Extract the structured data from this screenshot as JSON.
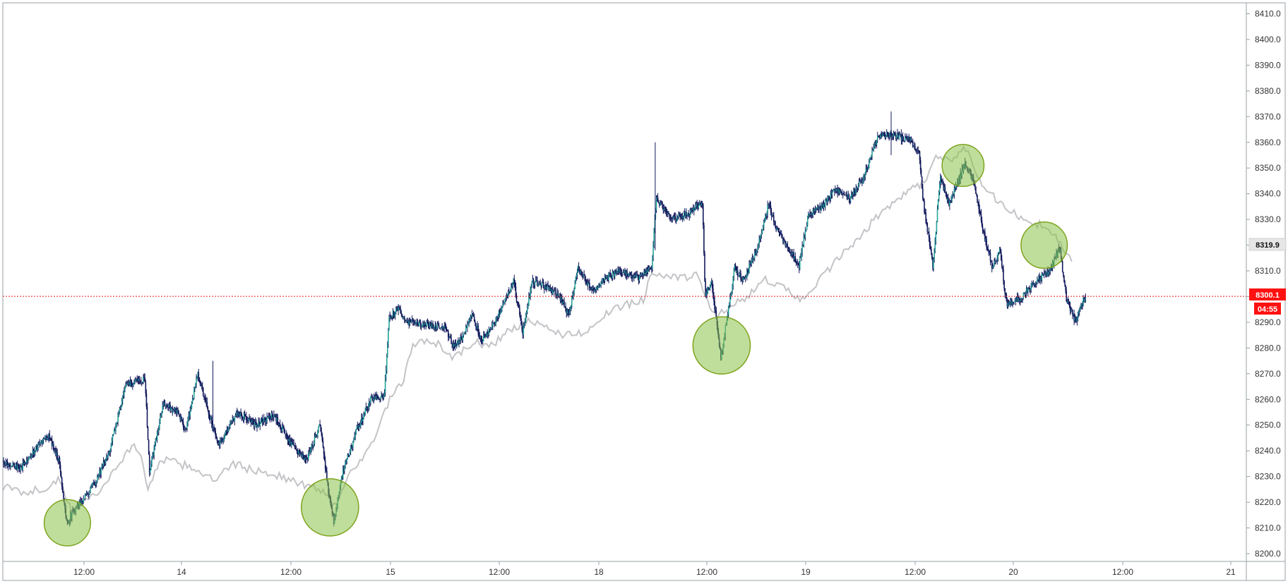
{
  "colors": {
    "background": "#ffffff",
    "frame": "#9aa0a6",
    "candle_up_body": "#26a69a",
    "candle_down_body": "#131a5c",
    "candle_wick": "#131a5c",
    "compare_line": "#c4c4c8",
    "last_price_line": "#e51c1c",
    "last_price_tag": "#ff1111",
    "countdown_tag": "#ff1111",
    "marker_tag": "#e6e6e6",
    "highlight_fill": "#8bc34a",
    "highlight_stroke": "#7fa41e"
  },
  "chart_data": {
    "type": "candlestick",
    "series": [
      {
        "kind": "candles",
        "interval": "5m"
      },
      {
        "kind": "line"
      }
    ],
    "ylim": [
      8196,
      8412
    ],
    "y_ticks": [
      "8200.0",
      "8210.0",
      "8220.0",
      "8230.0",
      "8240.0",
      "8250.0",
      "8260.0",
      "8270.0",
      "8280.0",
      "8290.0",
      "8300.0",
      "8310.0",
      "8320.0",
      "8330.0",
      "8340.0",
      "8350.0",
      "8360.0",
      "8370.0",
      "8380.0",
      "8390.0",
      "8400.0",
      "8410.0"
    ],
    "x_ticks": [
      "12:00",
      "14",
      "12:00",
      "15",
      "12:00",
      "18",
      "12:00",
      "19",
      "12:00",
      "20",
      "12:00",
      "21"
    ],
    "price_path": [
      {
        "t": 0.0,
        "p": 8236
      },
      {
        "t": 2.0,
        "p": 8233
      },
      {
        "t": 3.5,
        "p": 8240
      },
      {
        "t": 5.0,
        "p": 8246
      },
      {
        "t": 6.2,
        "p": 8236
      },
      {
        "t": 7.0,
        "p": 8212
      },
      {
        "t": 8.0,
        "p": 8218
      },
      {
        "t": 9.5,
        "p": 8224
      },
      {
        "t": 11.5,
        "p": 8238
      },
      {
        "t": 13.5,
        "p": 8266
      },
      {
        "t": 15.5,
        "p": 8268
      },
      {
        "t": 16.0,
        "p": 8232
      },
      {
        "t": 17.5,
        "p": 8258
      },
      {
        "t": 19.0,
        "p": 8255
      },
      {
        "t": 20.0,
        "p": 8248
      },
      {
        "t": 21.2,
        "p": 8270
      },
      {
        "t": 22.0,
        "p": 8260
      },
      {
        "t": 23.5,
        "p": 8242
      },
      {
        "t": 25.5,
        "p": 8255
      },
      {
        "t": 27.5,
        "p": 8250
      },
      {
        "t": 29.5,
        "p": 8254
      },
      {
        "t": 31.5,
        "p": 8242
      },
      {
        "t": 33.0,
        "p": 8236
      },
      {
        "t": 34.5,
        "p": 8250
      },
      {
        "t": 35.5,
        "p": 8222
      },
      {
        "t": 36.0,
        "p": 8213
      },
      {
        "t": 37.0,
        "p": 8232
      },
      {
        "t": 38.5,
        "p": 8248
      },
      {
        "t": 40.0,
        "p": 8260
      },
      {
        "t": 41.5,
        "p": 8262
      },
      {
        "t": 42.0,
        "p": 8292
      },
      {
        "t": 43.0,
        "p": 8295
      },
      {
        "t": 44.0,
        "p": 8290
      },
      {
        "t": 46.0,
        "p": 8289
      },
      {
        "t": 48.0,
        "p": 8288
      },
      {
        "t": 49.0,
        "p": 8281
      },
      {
        "t": 50.0,
        "p": 8284
      },
      {
        "t": 51.0,
        "p": 8294
      },
      {
        "t": 52.0,
        "p": 8283
      },
      {
        "t": 53.5,
        "p": 8290
      },
      {
        "t": 54.5,
        "p": 8298
      },
      {
        "t": 55.5,
        "p": 8306
      },
      {
        "t": 56.5,
        "p": 8286
      },
      {
        "t": 57.5,
        "p": 8306
      },
      {
        "t": 59.0,
        "p": 8304
      },
      {
        "t": 60.5,
        "p": 8300
      },
      {
        "t": 61.5,
        "p": 8293
      },
      {
        "t": 62.5,
        "p": 8311
      },
      {
        "t": 64.0,
        "p": 8302
      },
      {
        "t": 65.5,
        "p": 8307
      },
      {
        "t": 67.0,
        "p": 8310
      },
      {
        "t": 69.0,
        "p": 8307
      },
      {
        "t": 70.5,
        "p": 8312
      },
      {
        "t": 71.0,
        "p": 8338
      },
      {
        "t": 72.5,
        "p": 8330
      },
      {
        "t": 74.5,
        "p": 8332
      },
      {
        "t": 76.0,
        "p": 8337
      },
      {
        "t": 76.3,
        "p": 8300
      },
      {
        "t": 77.0,
        "p": 8306
      },
      {
        "t": 78.0,
        "p": 8276
      },
      {
        "t": 78.6,
        "p": 8290
      },
      {
        "t": 79.5,
        "p": 8311
      },
      {
        "t": 80.5,
        "p": 8306
      },
      {
        "t": 82.0,
        "p": 8320
      },
      {
        "t": 83.2,
        "p": 8336
      },
      {
        "t": 84.0,
        "p": 8326
      },
      {
        "t": 85.5,
        "p": 8318
      },
      {
        "t": 86.5,
        "p": 8312
      },
      {
        "t": 87.5,
        "p": 8332
      },
      {
        "t": 89.0,
        "p": 8335
      },
      {
        "t": 90.5,
        "p": 8342
      },
      {
        "t": 92.0,
        "p": 8338
      },
      {
        "t": 93.5,
        "p": 8346
      },
      {
        "t": 95.0,
        "p": 8362
      },
      {
        "t": 96.5,
        "p": 8363
      },
      {
        "t": 98.5,
        "p": 8361
      },
      {
        "t": 99.5,
        "p": 8356
      },
      {
        "t": 100.0,
        "p": 8336
      },
      {
        "t": 101.0,
        "p": 8312
      },
      {
        "t": 101.8,
        "p": 8346
      },
      {
        "t": 102.8,
        "p": 8336
      },
      {
        "t": 104.5,
        "p": 8352
      },
      {
        "t": 105.5,
        "p": 8344
      },
      {
        "t": 106.5,
        "p": 8325
      },
      {
        "t": 107.5,
        "p": 8311
      },
      {
        "t": 108.3,
        "p": 8318
      },
      {
        "t": 109.0,
        "p": 8297
      },
      {
        "t": 110.5,
        "p": 8299
      },
      {
        "t": 112.0,
        "p": 8306
      },
      {
        "t": 113.5,
        "p": 8309
      },
      {
        "t": 114.8,
        "p": 8319
      },
      {
        "t": 115.5,
        "p": 8299
      },
      {
        "t": 116.5,
        "p": 8290
      },
      {
        "t": 117.5,
        "p": 8300
      }
    ],
    "compare_path": [
      {
        "t": 0.0,
        "p": 8226
      },
      {
        "t": 2.0,
        "p": 8224
      },
      {
        "t": 4.5,
        "p": 8225
      },
      {
        "t": 6.0,
        "p": 8229
      },
      {
        "t": 7.5,
        "p": 8216
      },
      {
        "t": 9.0,
        "p": 8222
      },
      {
        "t": 10.5,
        "p": 8224
      },
      {
        "t": 12.0,
        "p": 8232
      },
      {
        "t": 14.0,
        "p": 8242
      },
      {
        "t": 15.0,
        "p": 8239
      },
      {
        "t": 15.8,
        "p": 8224
      },
      {
        "t": 17.0,
        "p": 8237
      },
      {
        "t": 19.0,
        "p": 8235
      },
      {
        "t": 21.0,
        "p": 8233
      },
      {
        "t": 23.0,
        "p": 8228
      },
      {
        "t": 25.0,
        "p": 8235
      },
      {
        "t": 27.5,
        "p": 8232
      },
      {
        "t": 29.5,
        "p": 8231
      },
      {
        "t": 31.5,
        "p": 8228
      },
      {
        "t": 33.5,
        "p": 8226
      },
      {
        "t": 35.0,
        "p": 8224
      },
      {
        "t": 36.2,
        "p": 8218
      },
      {
        "t": 37.5,
        "p": 8232
      },
      {
        "t": 39.0,
        "p": 8236
      },
      {
        "t": 40.5,
        "p": 8246
      },
      {
        "t": 42.0,
        "p": 8260
      },
      {
        "t": 43.5,
        "p": 8267
      },
      {
        "t": 44.5,
        "p": 8282
      },
      {
        "t": 47.0,
        "p": 8282
      },
      {
        "t": 49.0,
        "p": 8276
      },
      {
        "t": 51.0,
        "p": 8282
      },
      {
        "t": 53.0,
        "p": 8281
      },
      {
        "t": 55.0,
        "p": 8287
      },
      {
        "t": 57.0,
        "p": 8290
      },
      {
        "t": 59.0,
        "p": 8288
      },
      {
        "t": 61.0,
        "p": 8285
      },
      {
        "t": 63.0,
        "p": 8286
      },
      {
        "t": 65.0,
        "p": 8292
      },
      {
        "t": 67.0,
        "p": 8296
      },
      {
        "t": 69.5,
        "p": 8299
      },
      {
        "t": 70.5,
        "p": 8310
      },
      {
        "t": 73.0,
        "p": 8307
      },
      {
        "t": 75.5,
        "p": 8308
      },
      {
        "t": 76.5,
        "p": 8298
      },
      {
        "t": 77.5,
        "p": 8292
      },
      {
        "t": 79.0,
        "p": 8296
      },
      {
        "t": 81.0,
        "p": 8300
      },
      {
        "t": 82.5,
        "p": 8308
      },
      {
        "t": 84.0,
        "p": 8304
      },
      {
        "t": 85.5,
        "p": 8302
      },
      {
        "t": 87.0,
        "p": 8298
      },
      {
        "t": 88.5,
        "p": 8306
      },
      {
        "t": 90.0,
        "p": 8312
      },
      {
        "t": 91.5,
        "p": 8318
      },
      {
        "t": 93.0,
        "p": 8322
      },
      {
        "t": 94.5,
        "p": 8330
      },
      {
        "t": 96.0,
        "p": 8335
      },
      {
        "t": 98.0,
        "p": 8340
      },
      {
        "t": 100.0,
        "p": 8345
      },
      {
        "t": 101.5,
        "p": 8355
      },
      {
        "t": 103.0,
        "p": 8353
      },
      {
        "t": 104.5,
        "p": 8358
      },
      {
        "t": 106.5,
        "p": 8342
      },
      {
        "t": 108.5,
        "p": 8336
      },
      {
        "t": 110.5,
        "p": 8330
      },
      {
        "t": 112.5,
        "p": 8328
      },
      {
        "t": 114.5,
        "p": 8322
      },
      {
        "t": 116.0,
        "p": 8314
      }
    ],
    "last_price": {
      "value": "8300.1",
      "countdown": "04:55"
    },
    "marker_price": {
      "value": "8319.9"
    },
    "highlight_circles": [
      {
        "t": 7.0,
        "p": 8212,
        "r": 4.2
      },
      {
        "t": 35.5,
        "p": 8218,
        "r": 5.2
      },
      {
        "t": 78.0,
        "p": 8281,
        "r": 5.2
      },
      {
        "t": 104.2,
        "p": 8351,
        "r": 3.8
      },
      {
        "t": 113.0,
        "p": 8320,
        "r": 4.2
      }
    ]
  }
}
